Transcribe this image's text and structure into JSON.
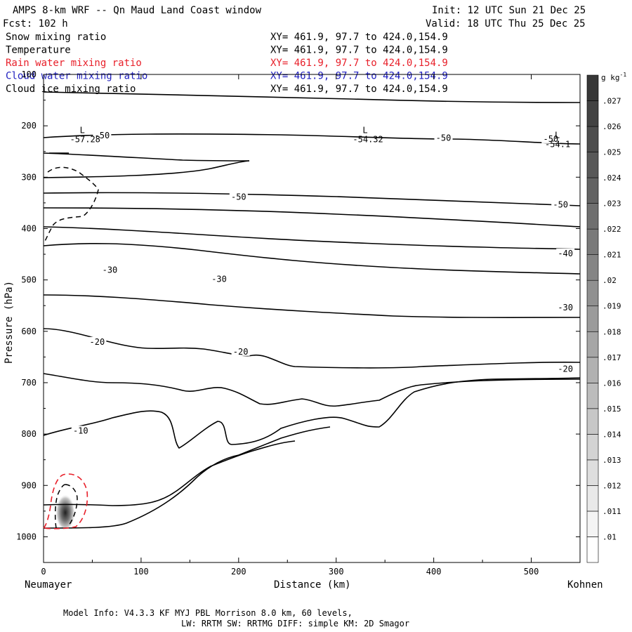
{
  "header": {
    "title": "AMPS 8-km WRF -- Qn Maud Land Coast window",
    "init": "Init: 12 UTC Sun 21 Dec 25",
    "fcst": "Fcst:  102 h",
    "valid": "Valid: 18 UTC Thu 25 Dec 25"
  },
  "fields": [
    {
      "name": "Snow mixing ratio",
      "xy": "XY= 461.9, 97.7 to 424.0,154.9",
      "color": "#000000"
    },
    {
      "name": "Temperature",
      "xy": "XY= 461.9, 97.7 to 424.0,154.9",
      "color": "#000000"
    },
    {
      "name": "Rain water mixing ratio",
      "xy": "XY= 461.9, 97.7 to 424.0,154.9",
      "color": "#e8202a"
    },
    {
      "name": "Cloud water mixing ratio",
      "xy": "XY= 461.9, 97.7 to 424.0,154.9",
      "color": "#2020c0"
    },
    {
      "name": "Cloud ice mixing ratio",
      "xy": "XY= 461.9, 97.7 to 424.0,154.9",
      "color": "#000000"
    }
  ],
  "chart_data": {
    "type": "cross-section contour",
    "xlabel": "Distance (km)",
    "ylabel": "Pressure (hPa)",
    "xlim": [
      0,
      550
    ],
    "ylim": [
      1050,
      100
    ],
    "x_ticks": [
      0,
      100,
      200,
      300,
      400,
      500
    ],
    "y_ticks": [
      100,
      200,
      300,
      400,
      500,
      600,
      700,
      800,
      900,
      1000
    ],
    "x_start_label": "Neumayer",
    "x_end_label": "Kohnen",
    "colorbar": {
      "unit": "g kg",
      "unit_sup": "-1",
      "levels": [
        ".01",
        ".011",
        ".012",
        ".013",
        ".014",
        ".015",
        ".016",
        ".017",
        ".018",
        ".019",
        ".02",
        ".021",
        ".022",
        ".023",
        ".024",
        ".025",
        ".026",
        ".027"
      ]
    },
    "temperature_contour_labels": [
      {
        "text": "-50",
        "x": 60,
        "p": 220
      },
      {
        "text": "-50",
        "x": 410,
        "p": 225
      },
      {
        "text": "-50",
        "x": 520,
        "p": 227
      },
      {
        "text": "-50",
        "x": 200,
        "p": 340
      },
      {
        "text": "-50",
        "x": 530,
        "p": 355
      },
      {
        "text": "-40",
        "x": 535,
        "p": 450
      },
      {
        "text": "-30",
        "x": 68,
        "p": 482
      },
      {
        "text": "-30",
        "x": 180,
        "p": 500
      },
      {
        "text": "-30",
        "x": 535,
        "p": 555
      },
      {
        "text": "-20",
        "x": 55,
        "p": 622
      },
      {
        "text": "-20",
        "x": 202,
        "p": 641
      },
      {
        "text": "-20",
        "x": 535,
        "p": 675
      },
      {
        "text": "-10",
        "x": 38,
        "p": 795
      }
    ],
    "lows": [
      {
        "text": "L",
        "value": "-57.28",
        "x": 40,
        "p": 255
      },
      {
        "text": "L",
        "value": "-54.32",
        "x": 330,
        "p": 255
      },
      {
        "text": "L",
        "value": "-54.1",
        "x": 527,
        "p": 265
      }
    ]
  },
  "footer": {
    "model_info": "Model Info: V4.3.3   KF      MYJ PBL  Morrison            8.0 km,  60 levels,",
    "physics": "LW: RRTM SW: RRTMG   DIFF: simple KM: 2D Smagor"
  }
}
